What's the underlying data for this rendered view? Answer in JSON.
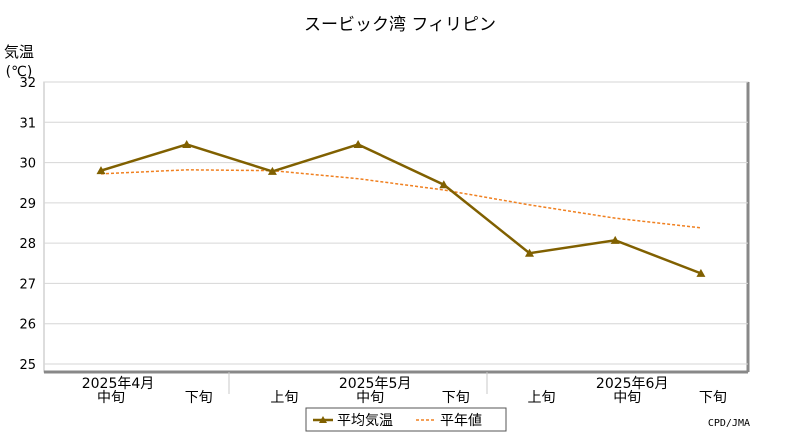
{
  "chart_data": {
    "type": "line",
    "title": "スービック湾 フィリピン",
    "ylabel_line1": "気温",
    "ylabel_line2": "(℃)",
    "ylim": [
      25,
      32
    ],
    "yticks": [
      25,
      26,
      27,
      28,
      29,
      30,
      31,
      32
    ],
    "grid": true,
    "x_labels": [
      "中旬",
      "下旬",
      "上旬",
      "中旬",
      "下旬",
      "上旬",
      "中旬",
      "下旬"
    ],
    "month_labels": [
      {
        "label": "2025年4月",
        "index": 0
      },
      {
        "label": "2025年5月",
        "index": 3
      },
      {
        "label": "2025年6月",
        "index": 6
      }
    ],
    "series": [
      {
        "name": "平均気温",
        "color": "#806000",
        "style": "solid",
        "marker": "triangle",
        "values": [
          29.8,
          30.45,
          29.78,
          30.45,
          29.45,
          27.75,
          28.07,
          27.25
        ]
      },
      {
        "name": "平年値",
        "color": "#f08020",
        "style": "dotted",
        "marker": "none",
        "values": [
          29.72,
          29.82,
          29.8,
          29.6,
          29.32,
          28.95,
          28.62,
          28.38
        ]
      }
    ],
    "legend_position": "bottom-center"
  },
  "credit": "CPD/JMA"
}
